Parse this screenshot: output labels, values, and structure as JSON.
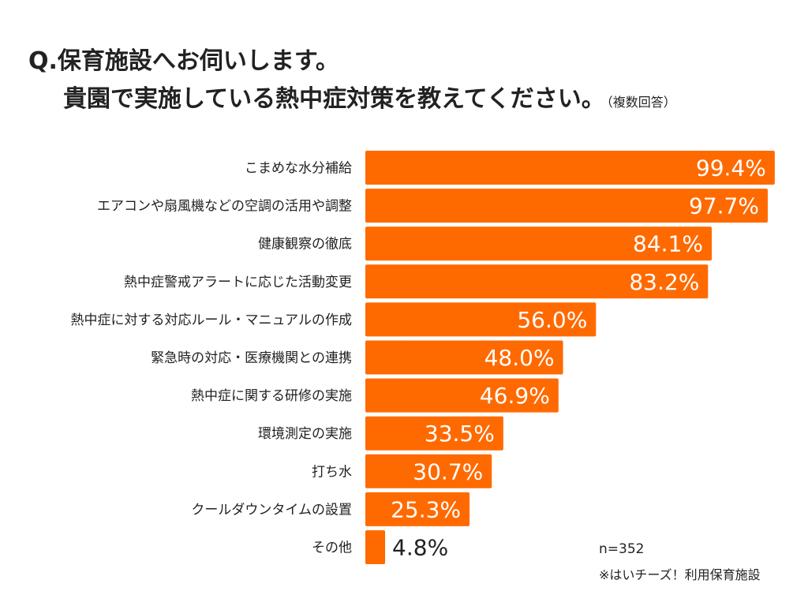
{
  "title": {
    "line1": "Q.保育施設へお伺いします。",
    "line2": "貴園で実施している熱中症対策を教えてください。",
    "note": "（複数回答）"
  },
  "footer": {
    "sample": "n=352",
    "source": "※はいチーズ！利用保育施設"
  },
  "colors": {
    "bar": "#ff6a00",
    "value_label_inside": "#ffffff",
    "value_label_outside": "#222222"
  },
  "chart_data": {
    "type": "bar",
    "orientation": "horizontal",
    "categories": [
      "こまめな水分補給",
      "エアコンや扇風機などの空調の活用や調整",
      "健康観察の徹底",
      "熱中症警戒アラートに応じた活動変更",
      "熱中症に対する対応ルール・マニュアルの作成",
      "緊急時の対応・医療機関との連携",
      "熱中症に関する研修の実施",
      "環境測定の実施",
      "打ち水",
      "クールダウンタイムの設置",
      "その他"
    ],
    "values": [
      99.4,
      97.7,
      84.1,
      83.2,
      56.0,
      48.0,
      46.9,
      33.5,
      30.7,
      25.3,
      4.8
    ],
    "value_labels": [
      "99.4%",
      "97.7%",
      "84.1%",
      "83.2%",
      "56.0%",
      "48.0%",
      "46.9%",
      "33.5%",
      "30.7%",
      "25.3%",
      "4.8%"
    ],
    "xlim": [
      0,
      100
    ],
    "grid": false,
    "legend": "none"
  }
}
